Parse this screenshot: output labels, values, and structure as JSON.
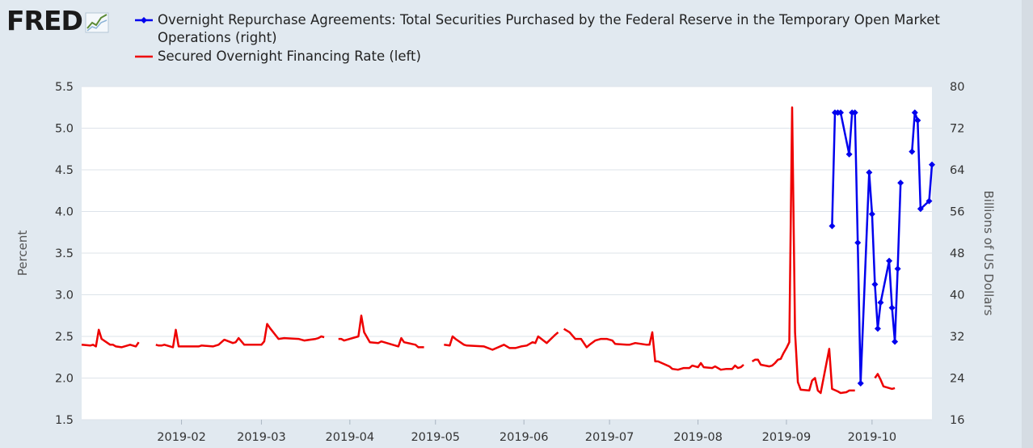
{
  "brand": {
    "logo_text": "FRED",
    "logo_icon": "chart-line-icon"
  },
  "colors": {
    "background": "#e1e9f0",
    "plot_bg": "#ffffff",
    "grid": "#dde3ea",
    "series_left": "#ee0000",
    "series_right": "#0000ee"
  },
  "chart_data": {
    "type": "line",
    "title": "",
    "ylabel_left": "Percent",
    "ylabel_right": "Billions of US Dollars",
    "ylim_left": [
      1.5,
      5.5
    ],
    "ylim_right": [
      16,
      80
    ],
    "yticks_left": [
      "1.5",
      "2.0",
      "2.5",
      "3.0",
      "3.5",
      "4.0",
      "4.5",
      "5.0",
      "5.5"
    ],
    "yticks_right": [
      "16",
      "24",
      "32",
      "40",
      "48",
      "56",
      "64",
      "72",
      "80"
    ],
    "xticks": [
      "2019-02",
      "2019-03",
      "2019-04",
      "2019-05",
      "2019-06",
      "2019-07",
      "2019-08",
      "2019-09",
      "2019-10"
    ],
    "xrange_days": [
      -4,
      294
    ],
    "xtick_days": [
      31,
      59,
      90,
      120,
      151,
      181,
      212,
      243,
      273
    ],
    "series": [
      {
        "name": "Overnight Repurchase Agreements: Total Securities Purchased by the Federal Reserve in the Temporary Open Market Operations (right)",
        "axis": "right",
        "marker": "diamond",
        "points": [
          [
            259,
            53.2
          ],
          [
            260,
            75.0
          ],
          [
            261,
            75.0
          ],
          [
            262,
            75.0
          ],
          [
            265,
            67.0
          ],
          [
            266,
            75.0
          ],
          [
            267,
            75.0
          ],
          [
            268,
            50.0
          ],
          [
            269,
            23.0
          ],
          [
            272,
            63.5
          ],
          [
            273,
            55.5
          ],
          [
            274,
            42.0
          ],
          [
            275,
            33.5
          ],
          [
            276,
            38.5
          ],
          [
            279,
            46.5
          ],
          [
            280,
            37.5
          ],
          [
            281,
            31.0
          ],
          [
            282,
            45.0
          ],
          [
            283,
            61.5
          ],
          null,
          [
            287,
            67.5
          ],
          [
            288,
            75.0
          ],
          [
            289,
            73.5
          ],
          [
            290,
            56.5
          ],
          [
            293,
            58.0
          ],
          [
            294,
            65.0
          ]
        ]
      },
      {
        "name": "Secured Overnight Financing Rate (left)",
        "axis": "left",
        "points": [
          [
            -4,
            2.4
          ],
          [
            -1,
            2.39
          ],
          [
            0,
            2.4
          ],
          [
            1,
            2.38
          ],
          [
            2,
            2.58
          ],
          [
            3,
            2.47
          ],
          [
            6,
            2.4
          ],
          [
            7,
            2.4
          ],
          [
            8,
            2.38
          ],
          [
            10,
            2.37
          ],
          [
            13,
            2.4
          ],
          [
            15,
            2.38
          ],
          [
            16,
            2.43
          ],
          null,
          [
            22,
            2.4
          ],
          [
            23,
            2.39
          ],
          [
            24,
            2.39
          ],
          [
            25,
            2.4
          ],
          [
            28,
            2.37
          ],
          [
            29,
            2.58
          ],
          [
            30,
            2.38
          ],
          [
            37,
            2.38
          ],
          [
            38,
            2.39
          ],
          [
            42,
            2.38
          ],
          [
            44,
            2.4
          ],
          [
            46,
            2.46
          ],
          [
            49,
            2.42
          ],
          [
            50,
            2.43
          ],
          [
            51,
            2.48
          ],
          [
            52,
            2.44
          ],
          [
            53,
            2.4
          ],
          [
            59,
            2.4
          ],
          [
            60,
            2.44
          ],
          [
            61,
            2.65
          ],
          [
            62,
            2.6
          ],
          [
            65,
            2.47
          ],
          [
            67,
            2.48
          ],
          [
            72,
            2.47
          ],
          [
            74,
            2.45
          ],
          [
            78,
            2.47
          ],
          [
            79,
            2.48
          ],
          [
            80,
            2.5
          ],
          [
            81,
            2.49
          ],
          null,
          [
            86,
            2.47
          ],
          [
            87,
            2.47
          ],
          [
            88,
            2.45
          ],
          [
            93,
            2.5
          ],
          [
            94,
            2.75
          ],
          [
            95,
            2.55
          ],
          [
            97,
            2.43
          ],
          [
            100,
            2.42
          ],
          [
            101,
            2.44
          ],
          [
            102,
            2.43
          ],
          [
            107,
            2.38
          ],
          [
            108,
            2.48
          ],
          [
            109,
            2.43
          ],
          [
            113,
            2.4
          ],
          [
            114,
            2.37
          ],
          [
            116,
            2.37
          ],
          null,
          [
            123,
            2.4
          ],
          [
            125,
            2.39
          ],
          [
            126,
            2.5
          ],
          [
            127,
            2.47
          ],
          [
            130,
            2.4
          ],
          [
            131,
            2.39
          ],
          [
            137,
            2.38
          ],
          [
            140,
            2.34
          ],
          [
            144,
            2.4
          ],
          [
            146,
            2.36
          ],
          [
            148,
            2.36
          ],
          [
            150,
            2.38
          ],
          [
            152,
            2.39
          ],
          [
            154,
            2.43
          ],
          [
            155,
            2.42
          ],
          [
            156,
            2.5
          ],
          [
            159,
            2.42
          ],
          [
            162,
            2.52
          ],
          [
            163,
            2.55
          ],
          null,
          [
            165,
            2.59
          ],
          [
            167,
            2.55
          ],
          [
            169,
            2.47
          ],
          [
            171,
            2.47
          ],
          [
            173,
            2.37
          ],
          [
            174,
            2.4
          ],
          [
            176,
            2.45
          ],
          [
            178,
            2.47
          ],
          [
            180,
            2.47
          ],
          [
            182,
            2.45
          ],
          [
            183,
            2.41
          ],
          [
            187,
            2.4
          ],
          [
            188,
            2.4
          ],
          [
            190,
            2.42
          ],
          [
            194,
            2.4
          ],
          [
            195,
            2.4
          ],
          [
            196,
            2.55
          ],
          [
            197,
            2.2
          ],
          [
            198,
            2.2
          ],
          [
            202,
            2.14
          ],
          [
            203,
            2.11
          ],
          [
            205,
            2.1
          ],
          [
            207,
            2.12
          ],
          [
            209,
            2.12
          ],
          [
            210,
            2.15
          ],
          [
            212,
            2.13
          ],
          [
            213,
            2.18
          ],
          [
            214,
            2.13
          ],
          [
            217,
            2.12
          ],
          [
            218,
            2.14
          ],
          [
            220,
            2.1
          ],
          [
            222,
            2.11
          ],
          [
            224,
            2.11
          ],
          [
            225,
            2.15
          ],
          [
            226,
            2.12
          ],
          [
            227,
            2.13
          ],
          [
            228,
            2.16
          ],
          null,
          [
            231,
            2.2
          ],
          [
            232,
            2.22
          ],
          [
            233,
            2.22
          ],
          [
            234,
            2.16
          ],
          [
            237,
            2.14
          ],
          [
            238,
            2.15
          ],
          [
            239,
            2.18
          ],
          [
            240,
            2.22
          ],
          [
            241,
            2.23
          ],
          [
            242,
            2.3
          ],
          [
            243,
            2.36
          ],
          [
            244,
            2.43
          ],
          [
            245,
            5.25
          ],
          [
            246,
            2.55
          ],
          [
            247,
            1.95
          ],
          [
            248,
            1.86
          ],
          [
            251,
            1.85
          ],
          [
            252,
            1.97
          ],
          [
            253,
            2.0
          ],
          [
            254,
            1.85
          ],
          [
            255,
            1.82
          ],
          [
            258,
            2.35
          ],
          [
            259,
            1.87
          ],
          [
            261,
            1.84
          ],
          [
            262,
            1.82
          ],
          [
            264,
            1.83
          ],
          [
            265,
            1.85
          ],
          [
            267,
            1.85
          ],
          null,
          [
            274,
            2.0
          ],
          [
            275,
            2.05
          ],
          [
            276,
            1.98
          ],
          [
            277,
            1.9
          ],
          [
            280,
            1.87
          ],
          [
            281,
            1.88
          ]
        ]
      }
    ]
  }
}
